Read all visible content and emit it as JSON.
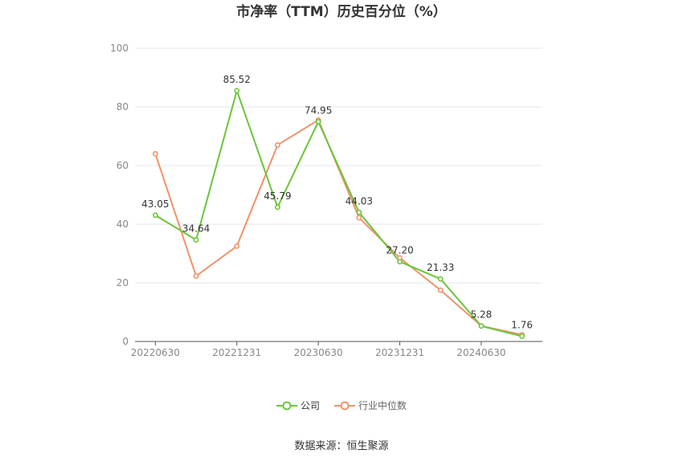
{
  "chart_data": {
    "type": "line",
    "title": "市净率（TTM）历史百分位（%）",
    "x": [
      "20220630",
      "",
      "20221231",
      "",
      "20230630",
      "",
      "20231231",
      "",
      "20240630",
      ""
    ],
    "x_tick_labels": [
      "20220630",
      "20221231",
      "20230630",
      "20231231",
      "20240630"
    ],
    "ylim": [
      0,
      100
    ],
    "y_ticks": [
      0,
      20,
      40,
      60,
      80,
      100
    ],
    "grid": true,
    "legend_position": "bottom",
    "series": [
      {
        "name": "公司",
        "color": "#6bc53a",
        "values": [
          43.05,
          34.64,
          85.52,
          45.79,
          74.95,
          44.03,
          27.2,
          21.33,
          5.28,
          1.76
        ],
        "labels": [
          "43.05",
          "34.64",
          "85.52",
          "45.79",
          "74.95",
          "44.03",
          "27.20",
          "21.33",
          "5.28",
          "1.76"
        ]
      },
      {
        "name": "行业中位数",
        "color": "#f2926a",
        "values": [
          64.0,
          22.3,
          32.5,
          67.0,
          75.5,
          42.2,
          28.5,
          17.5,
          5.3,
          2.3
        ]
      }
    ]
  },
  "footer": {
    "source": "数据来源：恒生聚源"
  }
}
